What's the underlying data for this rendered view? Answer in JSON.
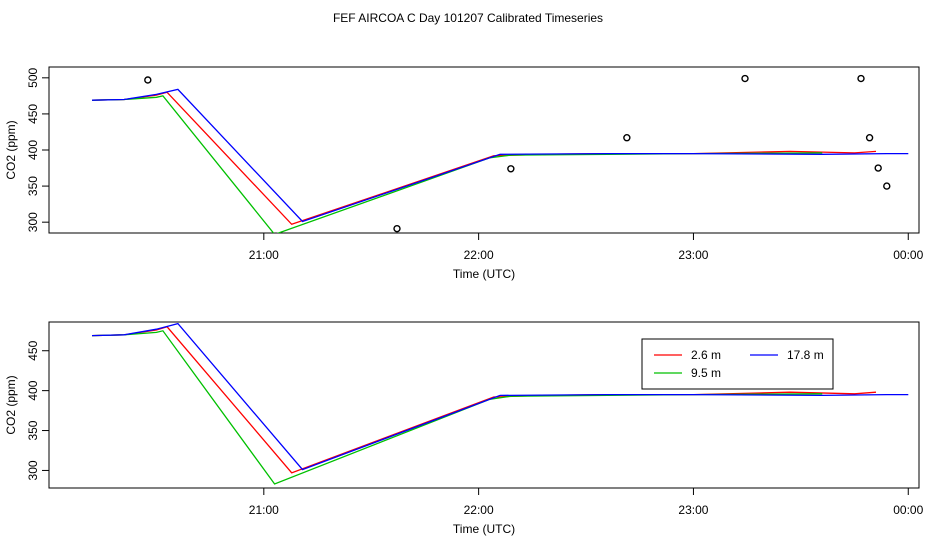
{
  "title": "FEF AIRCOA C  Day 101207  Calibrated Timeseries",
  "colors": {
    "s1": "#ff0000",
    "s2": "#00c000",
    "s3": "#0000ff",
    "frame": "#000000",
    "points": "#000000"
  },
  "chart_data": [
    {
      "type": "line",
      "xlabel": "Time (UTC)",
      "ylabel": "CO2 (ppm)",
      "x_unit": "hours UTC (24 = 00:00 next day)",
      "xlim": [
        20.0,
        24.05
      ],
      "ylim": [
        285,
        515
      ],
      "xticks": [
        21,
        22,
        23,
        24
      ],
      "xtick_labels": [
        "21:00",
        "22:00",
        "23:00",
        "00:00"
      ],
      "yticks": [
        300,
        350,
        400,
        450,
        500
      ],
      "ytick_labels": [
        "300",
        "350",
        "400",
        "450",
        "500"
      ],
      "legend": null,
      "series": [
        {
          "name": "2.6 m",
          "color": "#ff0000",
          "x": [
            20.2,
            20.35,
            20.5,
            20.55,
            21.13,
            22.07,
            22.3,
            22.6,
            23.0,
            23.45,
            23.75,
            23.85
          ],
          "y": [
            469,
            470,
            476,
            480,
            297,
            392,
            394,
            395,
            395,
            398,
            396,
            398
          ]
        },
        {
          "name": "9.5 m",
          "color": "#00c000",
          "x": [
            20.2,
            20.35,
            20.5,
            20.53,
            21.05,
            22.05,
            22.15,
            22.6,
            23.0,
            23.6
          ],
          "y": [
            469,
            470,
            473,
            475,
            283,
            389,
            393,
            394,
            395,
            396
          ]
        },
        {
          "name": "17.8 m",
          "color": "#0000ff",
          "x": [
            20.2,
            20.35,
            20.5,
            20.6,
            21.18,
            22.1,
            22.6,
            23.0,
            23.6,
            23.9,
            24.0
          ],
          "y": [
            469,
            470,
            477,
            484,
            301,
            394,
            395,
            395,
            394,
            395,
            395
          ]
        }
      ],
      "points": {
        "x": [
          20.46,
          21.62,
          22.15,
          22.69,
          23.24,
          23.78,
          23.82,
          23.86,
          23.9
        ],
        "y": [
          497,
          291,
          374,
          417,
          499,
          499,
          417,
          375,
          350
        ]
      }
    },
    {
      "type": "line",
      "xlabel": "Time (UTC)",
      "ylabel": "CO2 (ppm)",
      "xlim": [
        20.0,
        24.05
      ],
      "ylim": [
        278,
        486
      ],
      "xticks": [
        21,
        22,
        23,
        24
      ],
      "xtick_labels": [
        "21:00",
        "22:00",
        "23:00",
        "00:00"
      ],
      "yticks": [
        300,
        350,
        400,
        450
      ],
      "ytick_labels": [
        "300",
        "350",
        "400",
        "450"
      ],
      "legend": "top-right",
      "series": [
        {
          "name": "2.6 m",
          "color": "#ff0000",
          "x": [
            20.2,
            20.35,
            20.5,
            20.55,
            21.13,
            22.07,
            22.3,
            22.6,
            23.0,
            23.45,
            23.75,
            23.85
          ],
          "y": [
            469,
            470,
            476,
            480,
            297,
            392,
            394,
            395,
            395,
            398,
            396,
            398
          ]
        },
        {
          "name": "9.5 m",
          "color": "#00c000",
          "x": [
            20.2,
            20.35,
            20.5,
            20.53,
            21.05,
            22.05,
            22.15,
            22.6,
            23.0,
            23.6
          ],
          "y": [
            469,
            470,
            473,
            475,
            283,
            389,
            393,
            394,
            395,
            396
          ]
        },
        {
          "name": "17.8 m",
          "color": "#0000ff",
          "x": [
            20.2,
            20.35,
            20.5,
            20.6,
            21.18,
            22.1,
            22.6,
            23.0,
            23.6,
            23.9,
            24.0
          ],
          "y": [
            469,
            470,
            477,
            484,
            301,
            394,
            395,
            395,
            394,
            395,
            395
          ]
        }
      ],
      "points": null
    }
  ]
}
